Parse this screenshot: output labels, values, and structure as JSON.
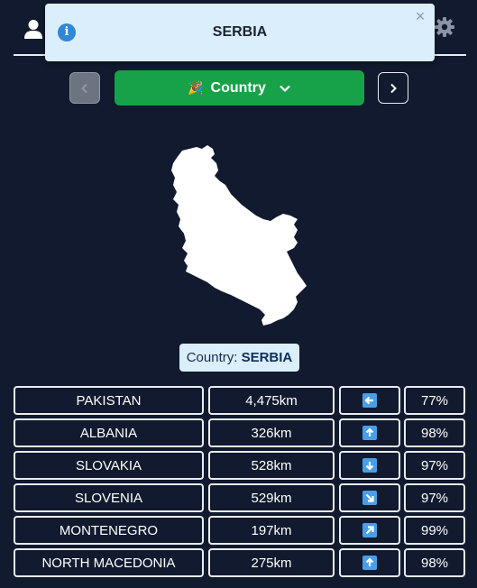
{
  "header": {
    "user_icon": "user-icon",
    "settings_icon": "gear-icon"
  },
  "toast": {
    "icon": "info-icon",
    "title": "SERBIA",
    "close": "×"
  },
  "controls": {
    "prev_icon": "chevron-left-icon",
    "next_icon": "chevron-right-icon",
    "select_flag": "🎉",
    "select_label": "Country",
    "select_icon": "chevron-down-icon",
    "select_color": "#17a24a"
  },
  "answer": {
    "label_prefix": "Country: ",
    "label_value": "SERBIA",
    "shape": "serbia-map-silhouette"
  },
  "guesses": [
    {
      "country": "PAKISTAN",
      "distance": "4,475km",
      "direction": "arrow-left-icon",
      "proximity": "77%"
    },
    {
      "country": "ALBANIA",
      "distance": "326km",
      "direction": "arrow-up-icon",
      "proximity": "98%"
    },
    {
      "country": "SLOVAKIA",
      "distance": "528km",
      "direction": "arrow-down-icon",
      "proximity": "97%"
    },
    {
      "country": "SLOVENIA",
      "distance": "529km",
      "direction": "arrow-down-right-icon",
      "proximity": "97%"
    },
    {
      "country": "MONTENEGRO",
      "distance": "197km",
      "direction": "arrow-up-right-icon",
      "proximity": "99%"
    },
    {
      "country": "NORTH MACEDONIA",
      "distance": "275km",
      "direction": "arrow-up-icon",
      "proximity": "98%"
    }
  ]
}
